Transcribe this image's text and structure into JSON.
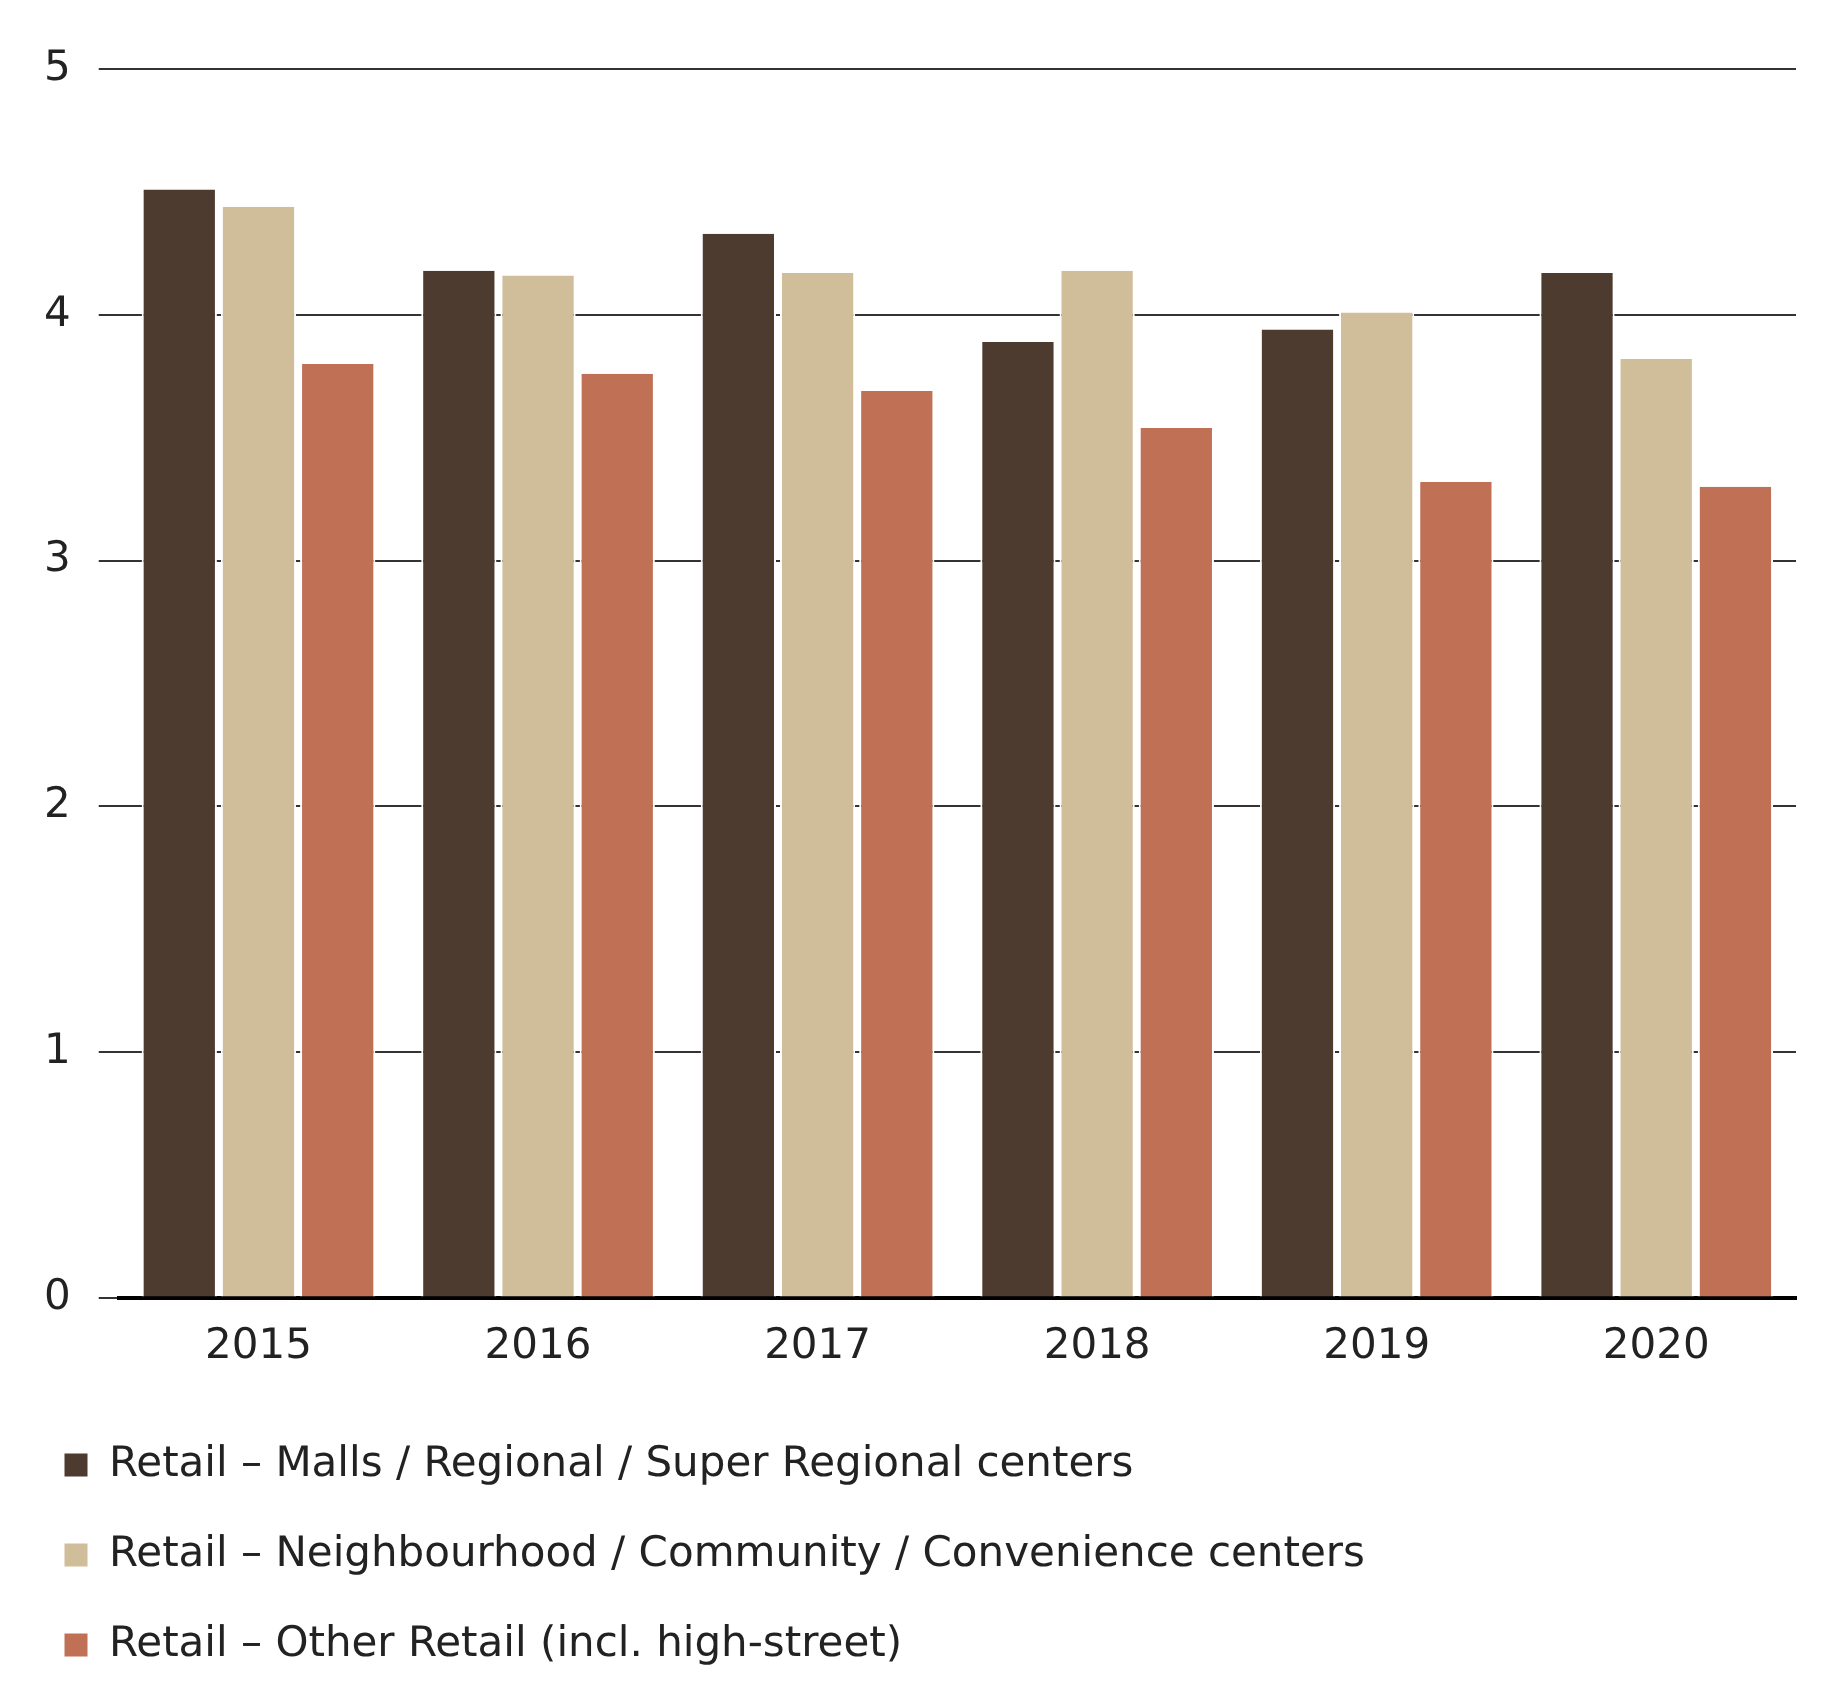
{
  "chart_data": {
    "type": "bar",
    "categories": [
      "2015",
      "2016",
      "2017",
      "2018",
      "2019",
      "2020"
    ],
    "series": [
      {
        "name": "Retail – Malls / Regional / Super Regional centers",
        "color": "#4e3b30",
        "values": [
          4.51,
          4.18,
          4.33,
          3.89,
          3.94,
          4.17
        ]
      },
      {
        "name": "Retail – Neighbourhood / Community / Convenience centers",
        "color": "#d0bd9a",
        "values": [
          4.44,
          4.16,
          4.17,
          4.18,
          4.01,
          3.82
        ]
      },
      {
        "name": "Retail – Other Retail (incl. high-street)",
        "color": "#c07155",
        "values": [
          3.8,
          3.76,
          3.69,
          3.54,
          3.32,
          3.3
        ]
      }
    ],
    "ylim": [
      0,
      5
    ],
    "yticks": [
      0,
      1,
      2,
      3,
      4,
      5
    ],
    "grid": "y",
    "legend": "bottom"
  }
}
